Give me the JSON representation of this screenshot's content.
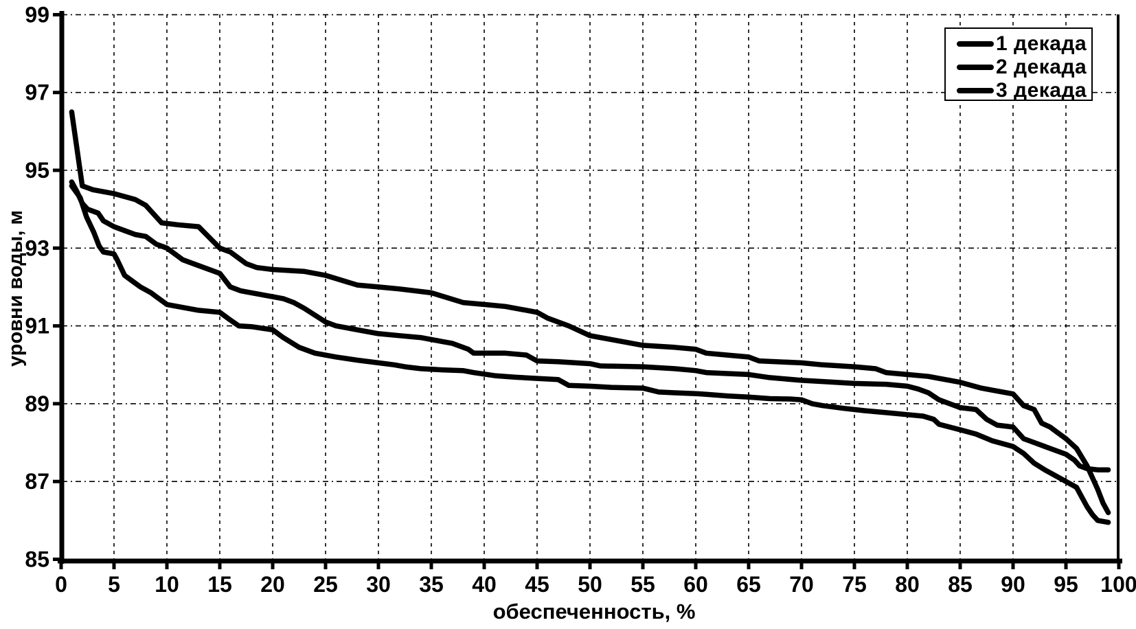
{
  "chart_data": {
    "type": "line",
    "title": "",
    "xlabel": "обеспеченность, %",
    "ylabel": "уровни воды, м",
    "xlim": [
      0,
      100
    ],
    "ylim": [
      85,
      99
    ],
    "x_ticks": [
      0,
      5,
      10,
      15,
      20,
      25,
      30,
      35,
      40,
      45,
      50,
      55,
      60,
      65,
      70,
      75,
      80,
      85,
      90,
      95,
      100
    ],
    "y_ticks": [
      85,
      87,
      89,
      91,
      93,
      95,
      97,
      99
    ],
    "grid": "dashed both axes",
    "legend_position": "top-right",
    "background_color": "#ffffff",
    "line_color": "#000000",
    "grid_color": "#000000",
    "series": [
      {
        "name": "1 декада",
        "points": [
          [
            1,
            96.5
          ],
          [
            2,
            94.6
          ],
          [
            3,
            94.5
          ],
          [
            5,
            94.4
          ],
          [
            7,
            94.25
          ],
          [
            8,
            94.1
          ],
          [
            9,
            93.8
          ],
          [
            9.5,
            93.65
          ],
          [
            11,
            93.6
          ],
          [
            13,
            93.55
          ],
          [
            15,
            93.0
          ],
          [
            16,
            92.9
          ],
          [
            17.5,
            92.6
          ],
          [
            18.5,
            92.5
          ],
          [
            20,
            92.45
          ],
          [
            23,
            92.4
          ],
          [
            25,
            92.3
          ],
          [
            28,
            92.05
          ],
          [
            30,
            92.0
          ],
          [
            32,
            91.95
          ],
          [
            35,
            91.85
          ],
          [
            38,
            91.6
          ],
          [
            40,
            91.55
          ],
          [
            42,
            91.5
          ],
          [
            45,
            91.35
          ],
          [
            46,
            91.2
          ],
          [
            48,
            91.0
          ],
          [
            50,
            90.75
          ],
          [
            52,
            90.65
          ],
          [
            55,
            90.5
          ],
          [
            58,
            90.45
          ],
          [
            60,
            90.4
          ],
          [
            61,
            90.3
          ],
          [
            63,
            90.25
          ],
          [
            65,
            90.2
          ],
          [
            66,
            90.1
          ],
          [
            70,
            90.05
          ],
          [
            72,
            90.0
          ],
          [
            75,
            89.95
          ],
          [
            77,
            89.9
          ],
          [
            78,
            89.8
          ],
          [
            80,
            89.75
          ],
          [
            82,
            89.7
          ],
          [
            83,
            89.65
          ],
          [
            85,
            89.55
          ],
          [
            87,
            89.4
          ],
          [
            88,
            89.35
          ],
          [
            90,
            89.25
          ],
          [
            91,
            88.95
          ],
          [
            92,
            88.85
          ],
          [
            92.7,
            88.5
          ],
          [
            93.5,
            88.4
          ],
          [
            94,
            88.3
          ],
          [
            95,
            88.1
          ],
          [
            96,
            87.85
          ],
          [
            97,
            87.4
          ],
          [
            98,
            86.8
          ],
          [
            98.5,
            86.45
          ],
          [
            99,
            86.2
          ]
        ]
      },
      {
        "name": "2 декада",
        "points": [
          [
            1,
            94.7
          ],
          [
            1.5,
            94.45
          ],
          [
            2,
            94.15
          ],
          [
            2.5,
            94.0
          ],
          [
            3.5,
            93.9
          ],
          [
            4,
            93.7
          ],
          [
            5,
            93.55
          ],
          [
            6,
            93.45
          ],
          [
            7,
            93.35
          ],
          [
            8,
            93.3
          ],
          [
            9,
            93.1
          ],
          [
            10,
            93.0
          ],
          [
            11.5,
            92.7
          ],
          [
            13,
            92.55
          ],
          [
            15,
            92.35
          ],
          [
            16,
            92.0
          ],
          [
            17,
            91.9
          ],
          [
            18,
            91.85
          ],
          [
            20,
            91.75
          ],
          [
            21,
            91.7
          ],
          [
            22,
            91.6
          ],
          [
            23,
            91.45
          ],
          [
            25,
            91.1
          ],
          [
            26,
            91.0
          ],
          [
            28,
            90.9
          ],
          [
            30,
            90.8
          ],
          [
            32,
            90.75
          ],
          [
            34,
            90.7
          ],
          [
            36,
            90.6
          ],
          [
            37,
            90.55
          ],
          [
            38.5,
            90.4
          ],
          [
            39,
            90.3
          ],
          [
            42,
            90.3
          ],
          [
            44,
            90.25
          ],
          [
            45,
            90.1
          ],
          [
            47,
            90.08
          ],
          [
            50,
            90.03
          ],
          [
            51,
            89.97
          ],
          [
            55,
            89.95
          ],
          [
            58,
            89.9
          ],
          [
            60,
            89.85
          ],
          [
            61,
            89.8
          ],
          [
            65,
            89.75
          ],
          [
            67,
            89.67
          ],
          [
            70,
            89.6
          ],
          [
            72,
            89.57
          ],
          [
            75,
            89.52
          ],
          [
            78,
            89.5
          ],
          [
            80,
            89.45
          ],
          [
            81,
            89.38
          ],
          [
            82,
            89.28
          ],
          [
            83,
            89.1
          ],
          [
            84,
            89.0
          ],
          [
            85,
            88.9
          ],
          [
            86.5,
            88.85
          ],
          [
            87.5,
            88.6
          ],
          [
            88.5,
            88.45
          ],
          [
            90,
            88.4
          ],
          [
            91,
            88.1
          ],
          [
            92,
            88.0
          ],
          [
            93,
            87.9
          ],
          [
            94,
            87.8
          ],
          [
            95,
            87.7
          ],
          [
            95.8,
            87.55
          ],
          [
            96.3,
            87.4
          ],
          [
            97,
            87.33
          ],
          [
            98,
            87.3
          ],
          [
            99,
            87.3
          ]
        ]
      },
      {
        "name": "3 декада",
        "points": [
          [
            1,
            94.6
          ],
          [
            1.8,
            94.3
          ],
          [
            2.4,
            93.8
          ],
          [
            3.1,
            93.4
          ],
          [
            3.6,
            93.05
          ],
          [
            4,
            92.9
          ],
          [
            5,
            92.85
          ],
          [
            5.3,
            92.7
          ],
          [
            6,
            92.3
          ],
          [
            7,
            92.1
          ],
          [
            7.5,
            92.0
          ],
          [
            8.5,
            91.85
          ],
          [
            9,
            91.75
          ],
          [
            10,
            91.55
          ],
          [
            11,
            91.5
          ],
          [
            13,
            91.4
          ],
          [
            15,
            91.35
          ],
          [
            16,
            91.15
          ],
          [
            16.8,
            91.0
          ],
          [
            18,
            90.98
          ],
          [
            20,
            90.9
          ],
          [
            21,
            90.7
          ],
          [
            22.5,
            90.45
          ],
          [
            24,
            90.3
          ],
          [
            26,
            90.2
          ],
          [
            28,
            90.12
          ],
          [
            30,
            90.05
          ],
          [
            31.5,
            90.0
          ],
          [
            32.5,
            89.95
          ],
          [
            34,
            89.9
          ],
          [
            36,
            89.87
          ],
          [
            38,
            89.85
          ],
          [
            39,
            89.8
          ],
          [
            41,
            89.72
          ],
          [
            43,
            89.68
          ],
          [
            45,
            89.65
          ],
          [
            47,
            89.62
          ],
          [
            48,
            89.47
          ],
          [
            50,
            89.45
          ],
          [
            52,
            89.42
          ],
          [
            55,
            89.4
          ],
          [
            56.5,
            89.3
          ],
          [
            58,
            89.28
          ],
          [
            60,
            89.26
          ],
          [
            61,
            89.24
          ],
          [
            63,
            89.2
          ],
          [
            65,
            89.17
          ],
          [
            67,
            89.13
          ],
          [
            69,
            89.12
          ],
          [
            70,
            89.1
          ],
          [
            71,
            89.0
          ],
          [
            72,
            88.95
          ],
          [
            74,
            88.88
          ],
          [
            76,
            88.82
          ],
          [
            78,
            88.77
          ],
          [
            80,
            88.72
          ],
          [
            81.5,
            88.68
          ],
          [
            82.5,
            88.6
          ],
          [
            83,
            88.47
          ],
          [
            84,
            88.4
          ],
          [
            85,
            88.33
          ],
          [
            86.5,
            88.22
          ],
          [
            88,
            88.05
          ],
          [
            90,
            87.9
          ],
          [
            91,
            87.72
          ],
          [
            92,
            87.47
          ],
          [
            93,
            87.3
          ],
          [
            94,
            87.15
          ],
          [
            95,
            87.0
          ],
          [
            96,
            86.85
          ],
          [
            96.5,
            86.6
          ],
          [
            97,
            86.35
          ],
          [
            97.5,
            86.15
          ],
          [
            98,
            86.0
          ],
          [
            99,
            85.95
          ]
        ]
      }
    ]
  }
}
